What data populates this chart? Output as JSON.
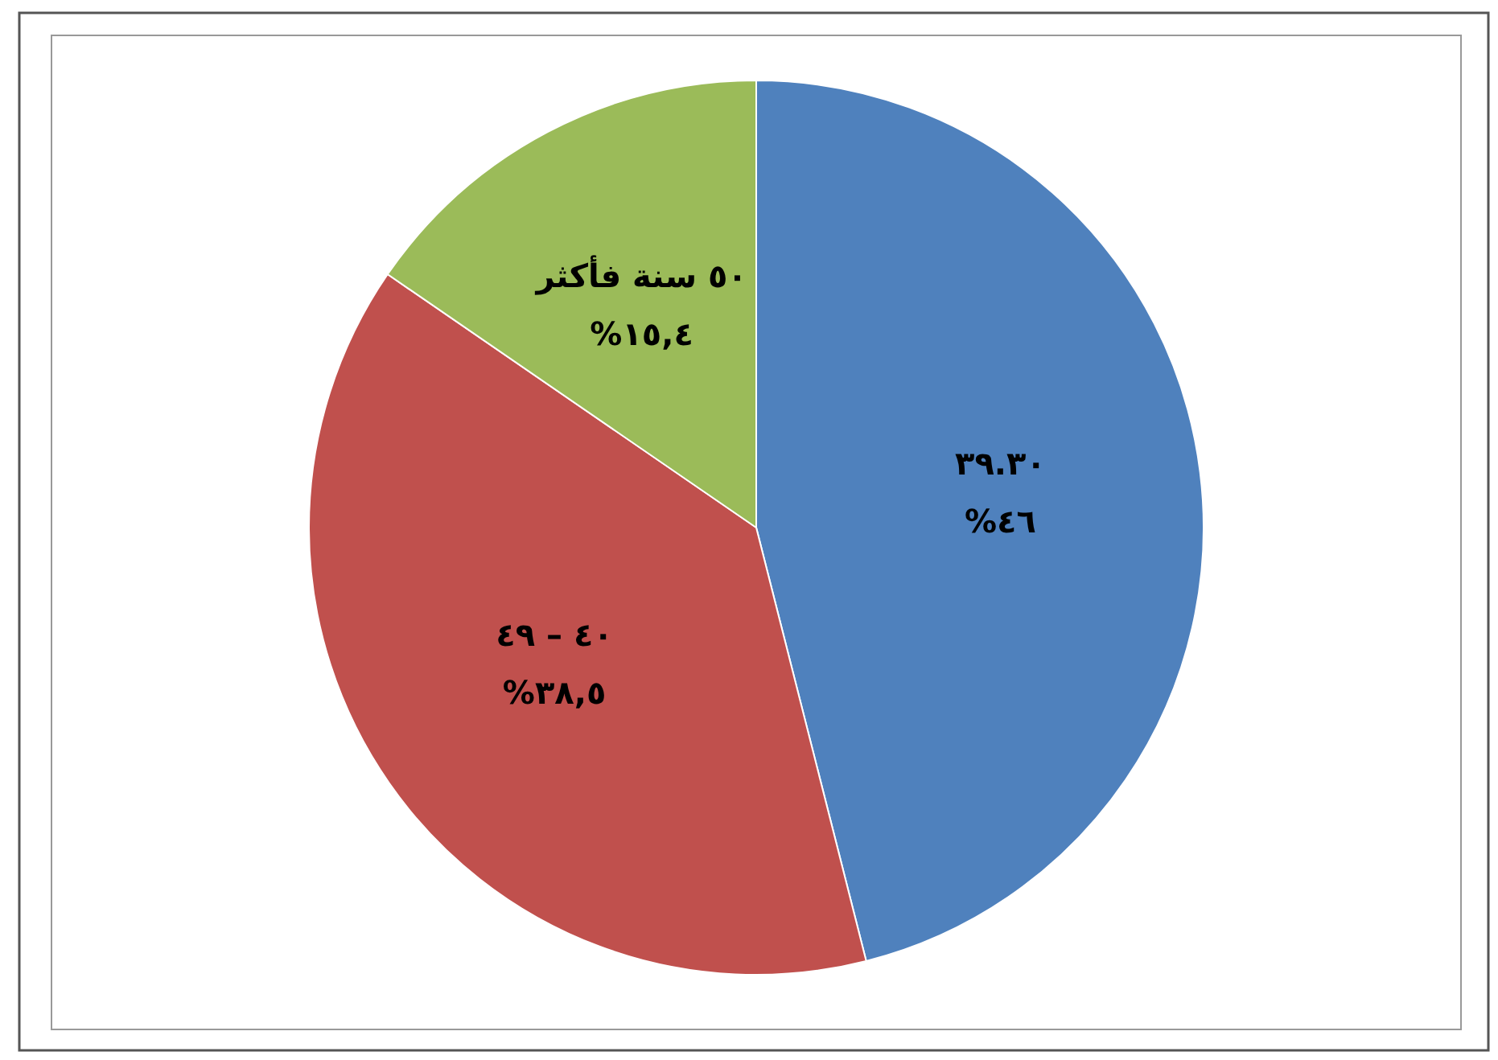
{
  "chart_data": {
    "type": "pie",
    "categories": [
      "٣٩.٣٠",
      "٤٠ – ٤٩",
      "٥٠ سنة فأكثر"
    ],
    "values": [
      46,
      38.5,
      15.4
    ],
    "value_labels": [
      "٤٦%",
      "٣٨,٥%",
      "١٥,٤%"
    ],
    "colors": [
      "#4f81bd",
      "#c0504d",
      "#9bbb59"
    ]
  }
}
